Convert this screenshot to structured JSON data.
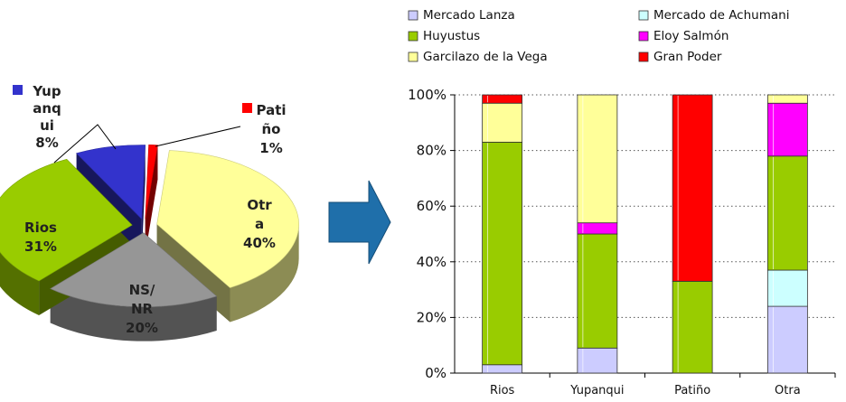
{
  "chart_data": [
    {
      "type": "pie",
      "style": "3d-exploded",
      "slices": [
        {
          "label": "Otr\na",
          "pct_label": "40%",
          "value": 40,
          "color": "#ffff99"
        },
        {
          "label": "NS/\nNR",
          "pct_label": "20%",
          "value": 20,
          "color": "#969696"
        },
        {
          "label": "Rios",
          "pct_label": "31%",
          "value": 31,
          "color": "#99cc00"
        },
        {
          "label": "Yup\nanq\nui",
          "pct_label": "8%",
          "value": 8,
          "color": "#3333cc"
        },
        {
          "label": "Pati\nño",
          "pct_label": "1%",
          "value": 1,
          "color": "#ff0000"
        }
      ]
    },
    {
      "type": "bar",
      "stacked": true,
      "percent": true,
      "categories": [
        "Rios",
        "Yupanqui",
        "Patiño",
        "Otra"
      ],
      "ylim": [
        0,
        100
      ],
      "yticks": [
        "0%",
        "20%",
        "40%",
        "60%",
        "80%",
        "100%"
      ],
      "grid": "horizontal-dotted",
      "legend_position": "top",
      "series": [
        {
          "name": "Mercado Lanza",
          "color": "#ccccff",
          "values": [
            3,
            9,
            0,
            24
          ]
        },
        {
          "name": "Mercado de Achumani",
          "color": "#ccffff",
          "values": [
            0,
            0,
            0,
            13
          ]
        },
        {
          "name": "Huyustus",
          "color": "#99cc00",
          "values": [
            80,
            41,
            33,
            41
          ]
        },
        {
          "name": "Eloy Salmón",
          "color": "#ff00ff",
          "values": [
            0,
            4,
            0,
            19
          ]
        },
        {
          "name": "Garcilazo de la Vega",
          "color": "#ffff99",
          "values": [
            14,
            46,
            0,
            3
          ]
        },
        {
          "name": "Gran Poder",
          "color": "#ff0000",
          "values": [
            3,
            0,
            67,
            0
          ]
        }
      ]
    }
  ],
  "arrow": {
    "icon": "right-arrow-icon",
    "color": "#1f6faa"
  }
}
